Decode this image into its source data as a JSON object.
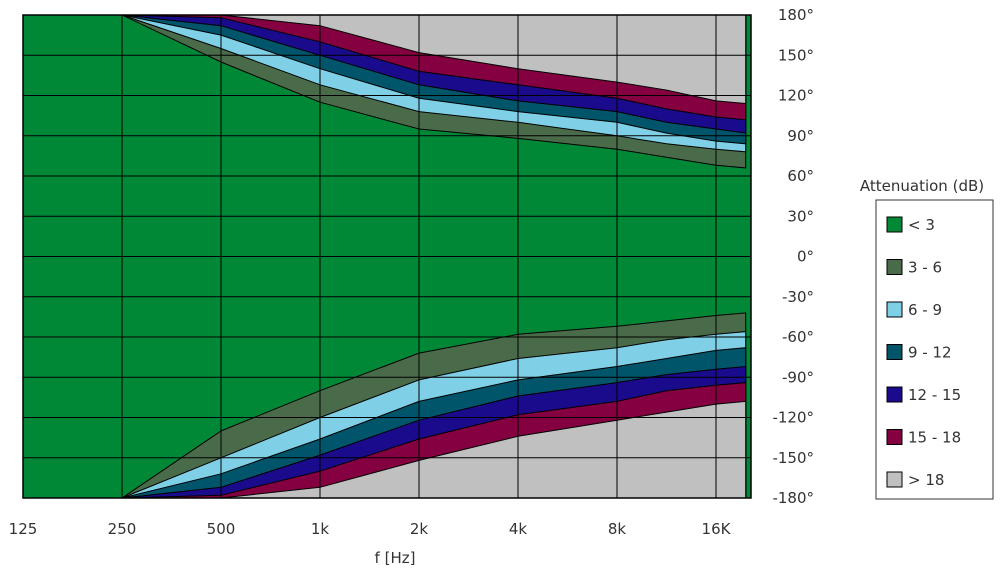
{
  "chart_data": {
    "type": "heatmap",
    "xlabel": "f [Hz]",
    "x_tick_labels": [
      "125",
      "250",
      "500",
      "1k",
      "2k",
      "4k",
      "8k",
      "16K"
    ],
    "y_tick_labels": [
      "180°",
      "150°",
      "120°",
      "90°",
      "60°",
      "30°",
      "0°",
      "-30°",
      "-60°",
      "-90°",
      "-120°",
      "-150°",
      "-180°"
    ],
    "x_range_octaves": [
      0,
      7.3
    ],
    "ylim": [
      -180,
      180
    ],
    "grid": true,
    "legend_title": "Attenuation (dB)",
    "legend_position": "right",
    "levels": [
      {
        "label": "< 3",
        "color": "#008837"
      },
      {
        "label": "3 - 6",
        "color": "#4a6b4a"
      },
      {
        "label": "6 - 9",
        "color": "#7fd0e6"
      },
      {
        "label": "9 - 12",
        "color": "#00556b"
      },
      {
        "label": "12 - 15",
        "color": "#1a0a8c"
      },
      {
        "label": "15 - 18",
        "color": "#850041"
      },
      {
        "label": "> 18",
        "color": "#c0c0c0"
      }
    ],
    "contour_boundaries_deg": {
      "note_octaves_from_125Hz": [
        0,
        1,
        2,
        3,
        4,
        5,
        6,
        6.5,
        7,
        7.3
      ],
      "upper": [
        [
          180,
          180,
          145,
          115,
          95,
          88,
          80,
          74,
          68,
          66
        ],
        [
          180,
          180,
          155,
          128,
          108,
          100,
          90,
          84,
          80,
          78
        ],
        [
          180,
          180,
          165,
          140,
          118,
          108,
          100,
          92,
          86,
          84
        ],
        [
          180,
          180,
          172,
          150,
          128,
          116,
          108,
          100,
          95,
          92
        ],
        [
          180,
          180,
          178,
          160,
          138,
          128,
          118,
          110,
          104,
          102
        ],
        [
          180,
          180,
          180,
          172,
          152,
          140,
          130,
          124,
          116,
          114
        ]
      ],
      "lower": [
        [
          -180,
          -180,
          -130,
          -100,
          -72,
          -58,
          -52,
          -48,
          -44,
          -42
        ],
        [
          -180,
          -180,
          -150,
          -120,
          -92,
          -76,
          -68,
          -62,
          -58,
          -56
        ],
        [
          -180,
          -180,
          -162,
          -136,
          -108,
          -92,
          -82,
          -76,
          -70,
          -68
        ],
        [
          -180,
          -180,
          -172,
          -148,
          -122,
          -104,
          -94,
          -88,
          -84,
          -82
        ],
        [
          -180,
          -180,
          -178,
          -160,
          -136,
          -118,
          -108,
          -100,
          -96,
          -94
        ],
        [
          -180,
          -180,
          -180,
          -172,
          -152,
          -134,
          -122,
          -116,
          -110,
          -108
        ]
      ]
    }
  }
}
